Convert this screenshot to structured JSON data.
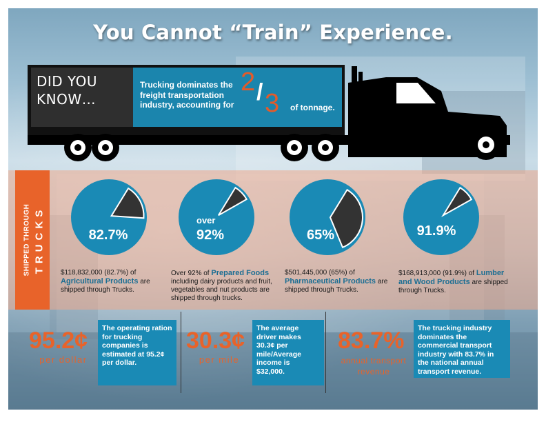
{
  "title": "You Cannot “Train” Experience.",
  "colors": {
    "accent": "#e8632a",
    "blue": "#1a8ab5",
    "dark": "#333333"
  },
  "trailer": {
    "did_you_know_line1": "DID YOU",
    "did_you_know_line2": "KNOW…",
    "text": "Trucking dominates the freight transportation industry, accounting for",
    "fraction_numerator": "2",
    "fraction_slash": "/",
    "fraction_denominator": "3",
    "suffix": "of tonnage."
  },
  "side_label": {
    "line1": "SHIPPED THROUGH",
    "line2": "TRUCKS"
  },
  "pies": [
    {
      "pct_label": "82.7%",
      "over_label": "",
      "fraction": 0.827,
      "caption_pre": "$118,832,000 (82.7%) of",
      "caption_highlight": "Agricultural Products",
      "caption_post": "are shipped through Trucks."
    },
    {
      "pct_label": "92%",
      "over_label": "over",
      "fraction": 0.92,
      "caption_pre": "Over 92% of",
      "caption_highlight": "Prepared Foods",
      "caption_post": "including dairy products and fruit, vegetables and nut products are shipped through trucks."
    },
    {
      "pct_label": "65%",
      "over_label": "",
      "fraction": 0.65,
      "caption_pre": "$501,445,000 (65%) of",
      "caption_highlight": "Pharmaceutical Products",
      "caption_post": "are shipped through Trucks."
    },
    {
      "pct_label": "91.9%",
      "over_label": "",
      "fraction": 0.919,
      "caption_pre": "$168,913,000 (91.9%) of",
      "caption_highlight": "Lumber and Wood Products",
      "caption_post": "are shipped through Trucks."
    }
  ],
  "stats": [
    {
      "big": "95.2¢",
      "sub": "per dollar",
      "box": "The operating ration for trucking companies is estimated at 95.2¢ per dollar."
    },
    {
      "big": "30.3¢",
      "sub": "per mile",
      "box": "The average driver makes 30.3¢ per mile/Average income is $32,000."
    },
    {
      "big": "83.7%",
      "sub": "annual transport revenue",
      "box": "The trucking industry dominates the commercial transport industry with 83.7% in the national annual transport revenue."
    }
  ]
}
